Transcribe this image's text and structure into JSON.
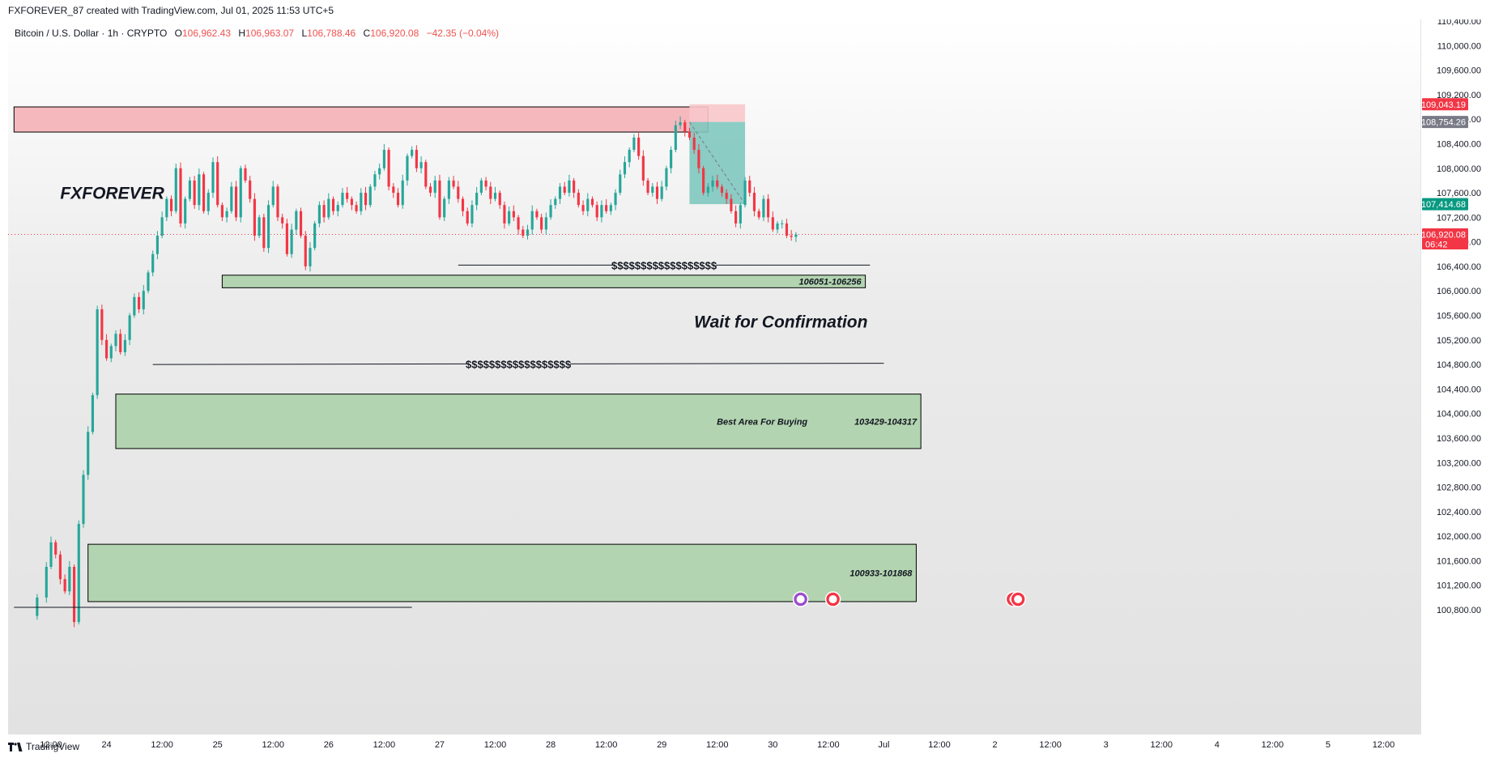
{
  "header": {
    "title": "FXFOREVER_87 created with TradingView.com, Jul 01, 2025 11:53 UTC+5"
  },
  "legend": {
    "symbol": "Bitcoin / U.S. Dollar · 1h · CRYPTO",
    "open_label": "O",
    "open": "106,962.43",
    "high_label": "H",
    "high": "106,963.07",
    "low_label": "L",
    "low": "106,788.46",
    "close_label": "C",
    "close": "106,920.08",
    "change": "−42.35 (−0.04%)"
  },
  "footer": {
    "brand": "TradingView"
  },
  "colors": {
    "up": "#26a69a",
    "down": "#f23645",
    "supply_zone": "#f5b8bd",
    "demand_zone": "#b3d4b0",
    "zone_border": "#000000",
    "take_profit": "#7fc8bf",
    "stop_loss": "#f8c6cb",
    "axis_text": "#131722"
  },
  "chart_data": {
    "type": "candlestick",
    "symbol": "Bitcoin / U.S. Dollar",
    "interval": "1h",
    "ylim": [
      100400,
      110600
    ],
    "y_ticks": [
      110400,
      110000,
      109600,
      109200,
      108800,
      108400,
      108000,
      107600,
      107200,
      106800,
      106400,
      106000,
      105600,
      105200,
      104800,
      104400,
      104000,
      103600,
      103200,
      102800,
      102400,
      102000,
      101600,
      101200,
      100800
    ],
    "y_tick_labels": [
      "110,400.00",
      "110,000.00",
      "109,600.00",
      "109,200.00",
      "108,800.00",
      "108,400.00",
      "108,000.00",
      "107,600.00",
      "107,200.00",
      "106,800.00",
      "106,400.00",
      "106,000.00",
      "105,600.00",
      "105,200.00",
      "104,800.00",
      "104,400.00",
      "104,000.00",
      "103,600.00",
      "103,200.00",
      "102,800.00",
      "102,400.00",
      "102,000.00",
      "101,600.00",
      "101,200.00",
      "100,800.00"
    ],
    "x_range_hours": [
      0,
      250
    ],
    "x_ticks": [
      {
        "h": 6,
        "label": "12:00"
      },
      {
        "h": 18,
        "label": "24"
      },
      {
        "h": 30,
        "label": "12:00"
      },
      {
        "h": 42,
        "label": "25"
      },
      {
        "h": 54,
        "label": "12:00"
      },
      {
        "h": 66,
        "label": "26"
      },
      {
        "h": 78,
        "label": "12:00"
      },
      {
        "h": 90,
        "label": "27"
      },
      {
        "h": 102,
        "label": "12:00"
      },
      {
        "h": 114,
        "label": "28"
      },
      {
        "h": 126,
        "label": "12:00"
      },
      {
        "h": 138,
        "label": "29"
      },
      {
        "h": 150,
        "label": "12:00"
      },
      {
        "h": 162,
        "label": "30"
      },
      {
        "h": 174,
        "label": "12:00"
      },
      {
        "h": 186,
        "label": "Jul"
      },
      {
        "h": 198,
        "label": "12:00"
      },
      {
        "h": 210,
        "label": "2"
      },
      {
        "h": 222,
        "label": "12:00"
      },
      {
        "h": 234,
        "label": "3"
      },
      {
        "h": 246,
        "label": "12:00"
      },
      {
        "h": 258,
        "label": "4"
      },
      {
        "h": 270,
        "label": "12:00"
      },
      {
        "h": 282,
        "label": "5"
      },
      {
        "h": 294,
        "label": "12:00"
      }
    ],
    "price_path": [
      [
        0,
        100700
      ],
      [
        3,
        101000
      ],
      [
        5,
        101500
      ],
      [
        6,
        101900
      ],
      [
        7,
        101700
      ],
      [
        8,
        101300
      ],
      [
        9,
        101100
      ],
      [
        10,
        101500
      ],
      [
        11,
        100600
      ],
      [
        12,
        102200
      ],
      [
        13,
        103000
      ],
      [
        14,
        103700
      ],
      [
        15,
        104300
      ],
      [
        16,
        105700
      ],
      [
        17,
        105200
      ],
      [
        18,
        104900
      ],
      [
        19,
        105100
      ],
      [
        20,
        105300
      ],
      [
        21,
        105000
      ],
      [
        22,
        105200
      ],
      [
        23,
        105600
      ],
      [
        24,
        105900
      ],
      [
        25,
        105700
      ],
      [
        26,
        106000
      ],
      [
        27,
        106300
      ],
      [
        28,
        106600
      ],
      [
        29,
        106900
      ],
      [
        30,
        107200
      ],
      [
        31,
        107500
      ],
      [
        32,
        107300
      ],
      [
        33,
        108000
      ],
      [
        34,
        107100
      ],
      [
        35,
        107500
      ],
      [
        36,
        107800
      ],
      [
        37,
        107400
      ],
      [
        38,
        107900
      ],
      [
        39,
        107300
      ],
      [
        40,
        107600
      ],
      [
        41,
        108100
      ],
      [
        42,
        107400
      ],
      [
        43,
        107200
      ],
      [
        44,
        107300
      ],
      [
        45,
        107700
      ],
      [
        46,
        107200
      ],
      [
        47,
        108000
      ],
      [
        48,
        107800
      ],
      [
        49,
        107500
      ],
      [
        50,
        106900
      ],
      [
        51,
        107200
      ],
      [
        52,
        106700
      ],
      [
        53,
        107400
      ],
      [
        54,
        107700
      ],
      [
        55,
        107200
      ],
      [
        56,
        107100
      ],
      [
        57,
        106600
      ],
      [
        58,
        107000
      ],
      [
        59,
        107300
      ],
      [
        60,
        106900
      ],
      [
        61,
        106400
      ],
      [
        62,
        106700
      ],
      [
        63,
        107100
      ],
      [
        64,
        107400
      ],
      [
        65,
        107200
      ],
      [
        66,
        107500
      ],
      [
        67,
        107300
      ],
      [
        68,
        107400
      ],
      [
        69,
        107600
      ],
      [
        70,
        107500
      ],
      [
        71,
        107400
      ],
      [
        72,
        107300
      ],
      [
        73,
        107600
      ],
      [
        74,
        107400
      ],
      [
        75,
        107700
      ],
      [
        76,
        107900
      ],
      [
        77,
        108000
      ],
      [
        78,
        108300
      ],
      [
        79,
        107700
      ],
      [
        80,
        107600
      ],
      [
        81,
        107400
      ],
      [
        82,
        107800
      ],
      [
        83,
        108200
      ],
      [
        84,
        108300
      ],
      [
        85,
        108000
      ],
      [
        86,
        108100
      ],
      [
        87,
        107700
      ],
      [
        88,
        107600
      ],
      [
        89,
        107800
      ],
      [
        90,
        107200
      ],
      [
        91,
        107500
      ],
      [
        92,
        107800
      ],
      [
        93,
        107700
      ],
      [
        94,
        107500
      ],
      [
        95,
        107300
      ],
      [
        96,
        107100
      ],
      [
        97,
        107400
      ],
      [
        98,
        107600
      ],
      [
        99,
        107800
      ],
      [
        100,
        107700
      ],
      [
        101,
        107500
      ],
      [
        102,
        107600
      ],
      [
        103,
        107400
      ],
      [
        104,
        107100
      ],
      [
        105,
        107300
      ],
      [
        106,
        107200
      ],
      [
        107,
        107000
      ],
      [
        108,
        106900
      ],
      [
        109,
        107000
      ],
      [
        110,
        107300
      ],
      [
        111,
        107200
      ],
      [
        112,
        107000
      ],
      [
        113,
        107200
      ],
      [
        114,
        107400
      ],
      [
        115,
        107500
      ],
      [
        116,
        107700
      ],
      [
        117,
        107600
      ],
      [
        118,
        107800
      ],
      [
        119,
        107600
      ],
      [
        120,
        107400
      ],
      [
        121,
        107300
      ],
      [
        122,
        107500
      ],
      [
        123,
        107400
      ],
      [
        124,
        107200
      ],
      [
        125,
        107400
      ],
      [
        126,
        107300
      ],
      [
        127,
        107400
      ],
      [
        128,
        107600
      ],
      [
        129,
        107900
      ],
      [
        130,
        108100
      ],
      [
        131,
        108300
      ],
      [
        132,
        108500
      ],
      [
        133,
        108200
      ],
      [
        134,
        107800
      ],
      [
        135,
        107600
      ],
      [
        136,
        107700
      ],
      [
        137,
        107500
      ],
      [
        138,
        107700
      ],
      [
        139,
        108000
      ],
      [
        140,
        108300
      ],
      [
        141,
        108700
      ],
      [
        142,
        108750
      ],
      [
        143,
        108600
      ],
      [
        144,
        108500
      ],
      [
        145,
        108300
      ],
      [
        146,
        108000
      ],
      [
        147,
        107600
      ],
      [
        148,
        107700
      ],
      [
        149,
        107800
      ],
      [
        150,
        107700
      ],
      [
        151,
        107600
      ],
      [
        152,
        107500
      ],
      [
        153,
        107300
      ],
      [
        154,
        107100
      ],
      [
        155,
        107400
      ],
      [
        156,
        107800
      ],
      [
        157,
        107600
      ],
      [
        158,
        107300
      ],
      [
        159,
        107200
      ],
      [
        160,
        107500
      ],
      [
        161,
        107200
      ],
      [
        162,
        107000
      ],
      [
        163,
        107100
      ],
      [
        164,
        107100
      ],
      [
        165,
        106900
      ],
      [
        166,
        106880
      ],
      [
        167,
        106920
      ]
    ],
    "current_price": 106920.08,
    "axis_labels": [
      {
        "price": 109043.19,
        "text": "109,043.19",
        "bg": "#f23645"
      },
      {
        "price": 108754.26,
        "text": "108,754.26",
        "bg": "#787b86"
      },
      {
        "price": 107414.68,
        "text": "107,414.68",
        "bg": "#089981"
      },
      {
        "price": 106920.08,
        "text": "106,920.08",
        "sub": "06:42",
        "bg": "#f23645"
      }
    ],
    "zones": [
      {
        "kind": "supply",
        "x0": -2,
        "x1": 148,
        "y0": 108590,
        "y1": 109000
      },
      {
        "kind": "demand",
        "x0": 43,
        "x1": 182,
        "y0": 106051,
        "y1": 106256,
        "label": "106051-106256"
      },
      {
        "kind": "demand",
        "x0": 20,
        "x1": 194,
        "y0": 103429,
        "y1": 104317,
        "label_left": "Best Area For Buying",
        "label": "103429-104317"
      },
      {
        "kind": "demand",
        "x0": 14,
        "x1": 193,
        "y0": 100933,
        "y1": 101868,
        "label": "100933-101868"
      }
    ],
    "position": {
      "x0": 144,
      "x1": 156,
      "entry": 108754.26,
      "stop": 109043.19,
      "target": 107414.68
    },
    "liquidity_lines": [
      {
        "x0": 94,
        "x1": 183,
        "y": 106420,
        "label": "$$$$$$$$$$$$$$$$$$"
      },
      {
        "x0": 28,
        "x1": 186,
        "y": 104800,
        "y_end": 104820,
        "label": "$$$$$$$$$$$$$$$$$$"
      },
      {
        "x0": -2,
        "x1": 84,
        "y": 100840,
        "label": ""
      }
    ],
    "annotations": [
      {
        "text": "FXFOREVER",
        "h": 8,
        "price": 107500,
        "size": 21
      },
      {
        "text": "Wait for Confirmation",
        "h": 145,
        "price": 105400,
        "size": 21
      }
    ],
    "events": [
      {
        "h": 168,
        "icon": "lightning"
      },
      {
        "h": 175,
        "icon": "flag"
      },
      {
        "h": 214,
        "icon": "flag"
      },
      {
        "h": 215,
        "icon": "flag"
      }
    ]
  }
}
